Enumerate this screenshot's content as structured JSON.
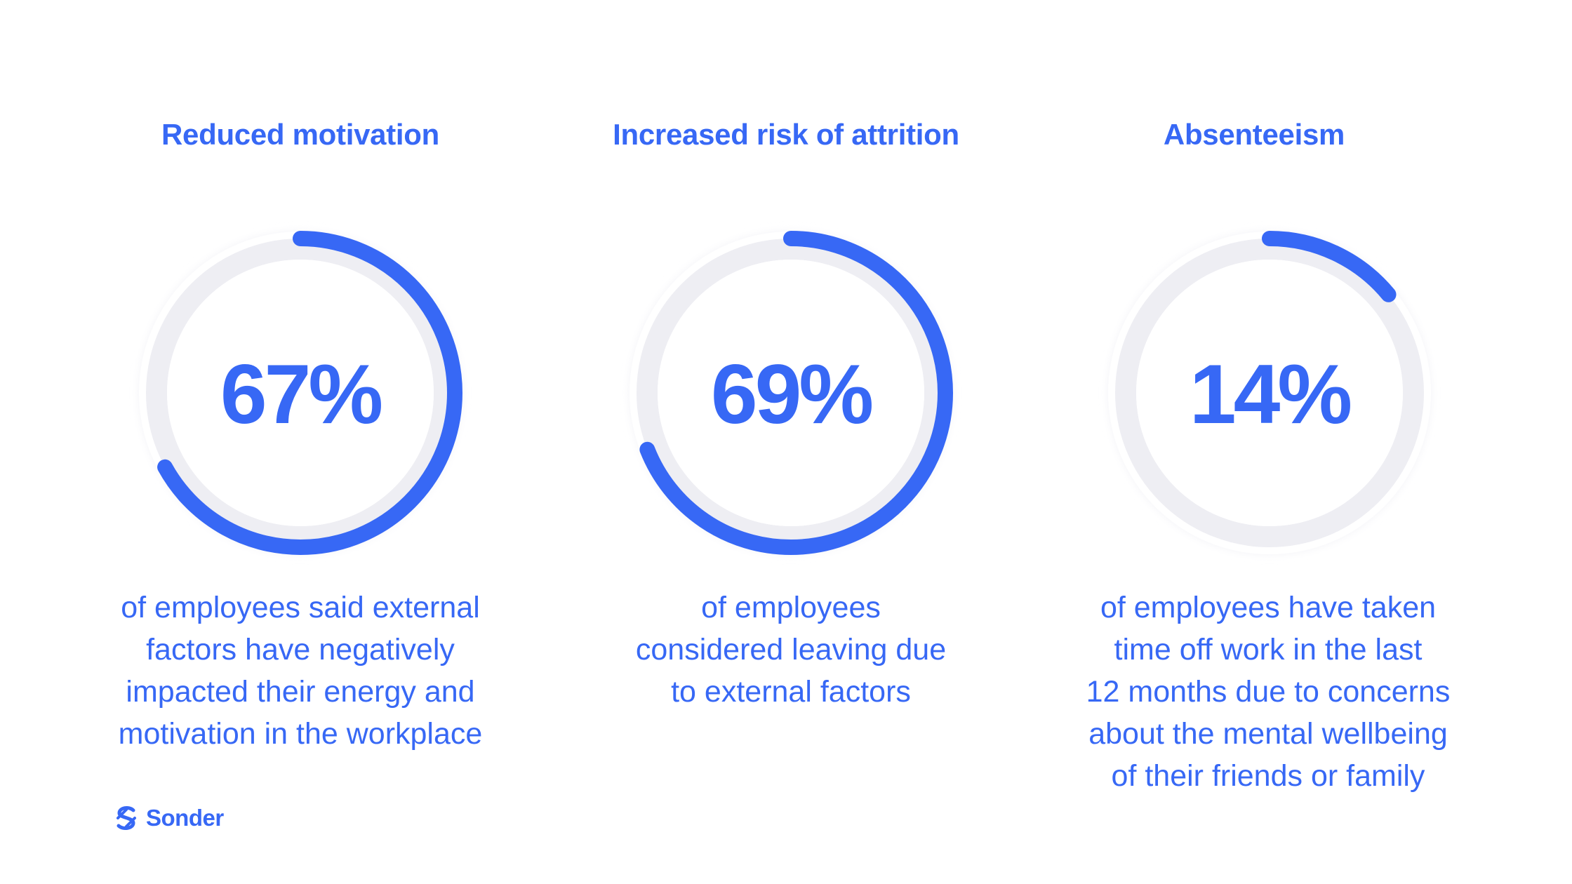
{
  "colors": {
    "accent": "#3768f5",
    "track": "#eeeef3",
    "background": "#ffffff"
  },
  "chart_data": [
    {
      "type": "pie",
      "title": "Reduced motivation",
      "value_label": "67%",
      "value": 67,
      "description": [
        "of employees said external",
        "factors have negatively",
        "impacted their energy and",
        "motivation in the workplace"
      ]
    },
    {
      "type": "pie",
      "title": "Increased risk of attrition",
      "value_label": "69%",
      "value": 69,
      "description": [
        "of employees",
        "considered leaving due",
        "to external factors"
      ]
    },
    {
      "type": "pie",
      "title": "Absenteeism",
      "value_label": "14%",
      "value": 14,
      "description": [
        "of employees have taken",
        "time off work in the last",
        "12 months due to concerns",
        "about the mental wellbeing",
        "of their friends or family"
      ]
    }
  ],
  "brand": {
    "logo_icon": "sonder-s-icon",
    "name": "Sonder"
  }
}
